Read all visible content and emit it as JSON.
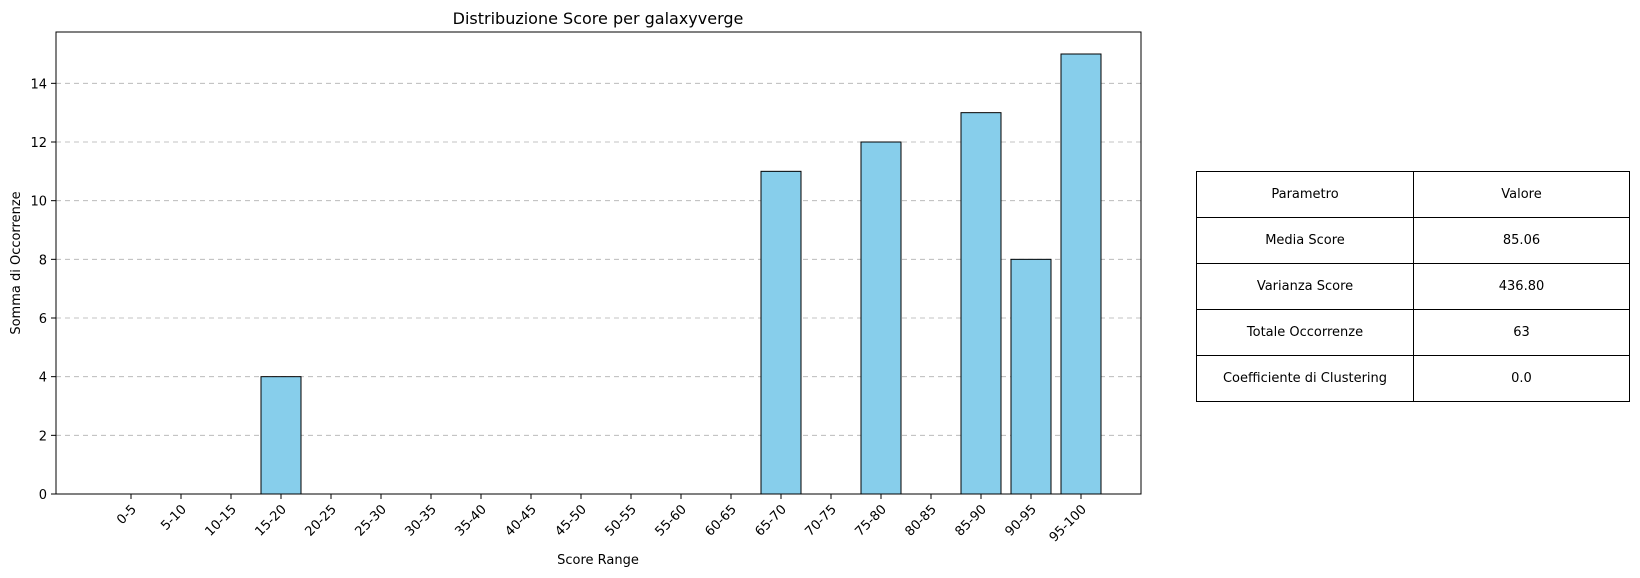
{
  "chart_data": {
    "type": "bar",
    "title": "Distribuzione Score per galaxyverge",
    "xlabel": "Score Range",
    "ylabel": "Somma di Occorrenze",
    "categories": [
      "0-5",
      "5-10",
      "10-15",
      "15-20",
      "20-25",
      "25-30",
      "30-35",
      "35-40",
      "40-45",
      "45-50",
      "50-55",
      "55-60",
      "60-65",
      "65-70",
      "70-75",
      "75-80",
      "80-85",
      "85-90",
      "90-95",
      "95-100"
    ],
    "values": [
      0,
      0,
      0,
      4,
      0,
      0,
      0,
      0,
      0,
      0,
      0,
      0,
      0,
      11,
      0,
      12,
      0,
      13,
      8,
      15
    ],
    "ylim": [
      0,
      15.75
    ],
    "yticks": [
      0,
      2,
      4,
      6,
      8,
      10,
      12,
      14
    ],
    "grid": "y-dashed",
    "bar_color": "#87CEEB",
    "edge_color": "#000000"
  },
  "table": {
    "header": [
      "Parametro",
      "Valore"
    ],
    "rows": [
      [
        "Media Score",
        "85.06"
      ],
      [
        "Varianza Score",
        "436.80"
      ],
      [
        "Totale Occorrenze",
        "63"
      ],
      [
        "Coefficiente di Clustering",
        "0.0"
      ]
    ]
  }
}
